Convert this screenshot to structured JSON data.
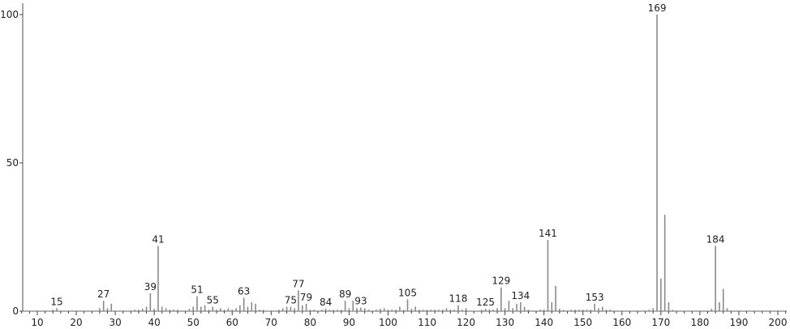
{
  "chart_data": {
    "type": "bar",
    "title": "",
    "xlabel": "",
    "ylabel": "",
    "xlim": [
      5,
      205
    ],
    "ylim": [
      0,
      100
    ],
    "x_ticks": [
      10,
      20,
      30,
      40,
      50,
      60,
      70,
      80,
      90,
      100,
      110,
      120,
      130,
      140,
      150,
      160,
      170,
      180,
      190,
      200
    ],
    "y_ticks": [
      0,
      50,
      100
    ],
    "grid": false,
    "peak_color": "#8a8a8a",
    "peaks": [
      [
        14,
        0.5
      ],
      [
        15,
        1
      ],
      [
        26,
        1
      ],
      [
        27,
        3.5
      ],
      [
        28,
        1
      ],
      [
        29,
        2.5
      ],
      [
        35,
        0.5
      ],
      [
        36,
        0.5
      ],
      [
        37,
        0.8
      ],
      [
        38,
        1.5
      ],
      [
        39,
        6
      ],
      [
        40,
        0.8
      ],
      [
        41,
        22
      ],
      [
        42,
        1.5
      ],
      [
        43,
        1
      ],
      [
        44,
        0.5
      ],
      [
        45,
        0.5
      ],
      [
        46,
        0.5
      ],
      [
        49,
        0.8
      ],
      [
        50,
        1.5
      ],
      [
        51,
        5
      ],
      [
        52,
        1.5
      ],
      [
        53,
        2
      ],
      [
        54,
        0.5
      ],
      [
        55,
        1.5
      ],
      [
        56,
        0.5
      ],
      [
        57,
        1
      ],
      [
        58,
        0.5
      ],
      [
        59,
        1
      ],
      [
        60,
        0.5
      ],
      [
        61,
        1
      ],
      [
        62,
        2
      ],
      [
        63,
        4.5
      ],
      [
        64,
        1.5
      ],
      [
        65,
        3
      ],
      [
        66,
        2.5
      ],
      [
        67,
        0.5
      ],
      [
        68,
        0.5
      ],
      [
        72,
        0.5
      ],
      [
        73,
        1
      ],
      [
        74,
        1.5
      ],
      [
        75,
        1.5
      ],
      [
        76,
        1
      ],
      [
        77,
        7
      ],
      [
        78,
        2
      ],
      [
        79,
        2.5
      ],
      [
        80,
        0.5
      ],
      [
        81,
        0.5
      ],
      [
        83,
        0.5
      ],
      [
        84,
        0.8
      ],
      [
        85,
        0.5
      ],
      [
        86,
        0.5
      ],
      [
        87,
        0.5
      ],
      [
        88,
        0.5
      ],
      [
        89,
        3.5
      ],
      [
        90,
        1
      ],
      [
        91,
        3.5
      ],
      [
        92,
        1
      ],
      [
        93,
        1.2
      ],
      [
        94,
        1
      ],
      [
        95,
        0.5
      ],
      [
        97,
        0.5
      ],
      [
        98,
        0.8
      ],
      [
        99,
        1
      ],
      [
        100,
        0.5
      ],
      [
        101,
        0.5
      ],
      [
        102,
        0.5
      ],
      [
        103,
        1.5
      ],
      [
        104,
        0.5
      ],
      [
        105,
        4
      ],
      [
        106,
        0.8
      ],
      [
        107,
        1.5
      ],
      [
        108,
        0.5
      ],
      [
        109,
        0.5
      ],
      [
        110,
        0.5
      ],
      [
        111,
        0.5
      ],
      [
        112,
        0.5
      ],
      [
        113,
        0.5
      ],
      [
        114,
        0.5
      ],
      [
        115,
        1
      ],
      [
        116,
        0.5
      ],
      [
        117,
        0.5
      ],
      [
        118,
        2
      ],
      [
        119,
        0.5
      ],
      [
        120,
        1
      ],
      [
        124,
        0.5
      ],
      [
        125,
        0.8
      ],
      [
        126,
        0.5
      ],
      [
        127,
        0.5
      ],
      [
        128,
        1
      ],
      [
        129,
        8
      ],
      [
        130,
        1
      ],
      [
        131,
        3.5
      ],
      [
        132,
        1
      ],
      [
        133,
        2.5
      ],
      [
        134,
        3
      ],
      [
        135,
        1.5
      ],
      [
        136,
        0.5
      ],
      [
        139,
        0.5
      ],
      [
        140,
        0.5
      ],
      [
        141,
        24
      ],
      [
        142,
        3
      ],
      [
        143,
        8.5
      ],
      [
        144,
        0.8
      ],
      [
        145,
        0.5
      ],
      [
        147,
        0.5
      ],
      [
        148,
        0.5
      ],
      [
        149,
        0.5
      ],
      [
        150,
        0.5
      ],
      [
        151,
        0.5
      ],
      [
        152,
        0.5
      ],
      [
        153,
        2.5
      ],
      [
        154,
        1
      ],
      [
        155,
        1.5
      ],
      [
        156,
        0.5
      ],
      [
        157,
        0.5
      ],
      [
        167,
        0.5
      ],
      [
        168,
        1
      ],
      [
        169,
        100
      ],
      [
        170,
        11
      ],
      [
        171,
        32.5
      ],
      [
        172,
        3
      ],
      [
        173,
        0.5
      ],
      [
        183,
        0.8
      ],
      [
        184,
        22
      ],
      [
        185,
        3
      ],
      [
        186,
        7.5
      ],
      [
        187,
        1
      ]
    ],
    "labeled_peaks": [
      "15",
      "27",
      "39",
      "41",
      "51",
      "55",
      "63",
      "75",
      "77",
      "79",
      "84",
      "89",
      "93",
      "105",
      "118",
      "125",
      "129",
      "134",
      "141",
      "153",
      "169",
      "184"
    ]
  }
}
